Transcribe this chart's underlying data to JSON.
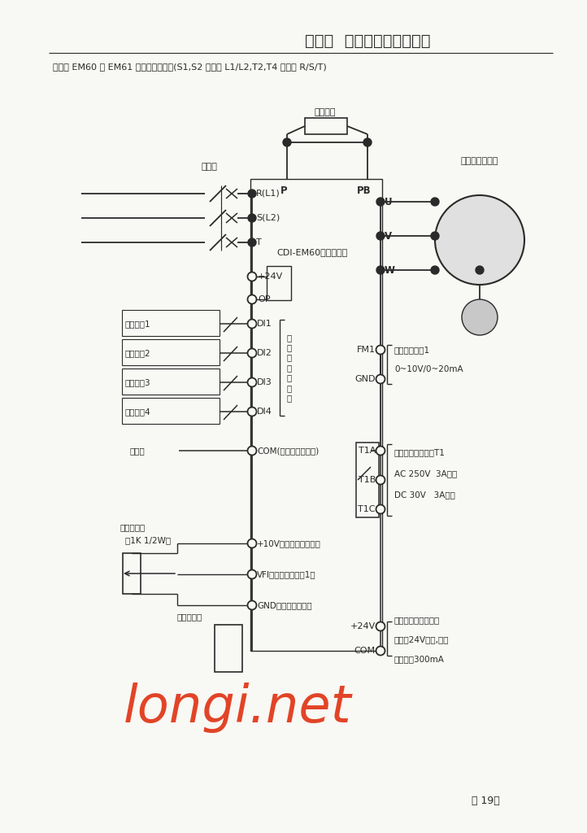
{
  "title": "第三章  变频器的安装及接线",
  "subtitle": "下面是 EM60 和 EM61 控制回路接线图(S1,S2 机型接 L1/L2,T2,T4 机型接 R/S/T)",
  "watermark": "longi.net",
  "page": "第 19页",
  "bg_color": "#f8f8f4",
  "line_color": "#2a2a2a",
  "text_color": "#2a2a2a"
}
